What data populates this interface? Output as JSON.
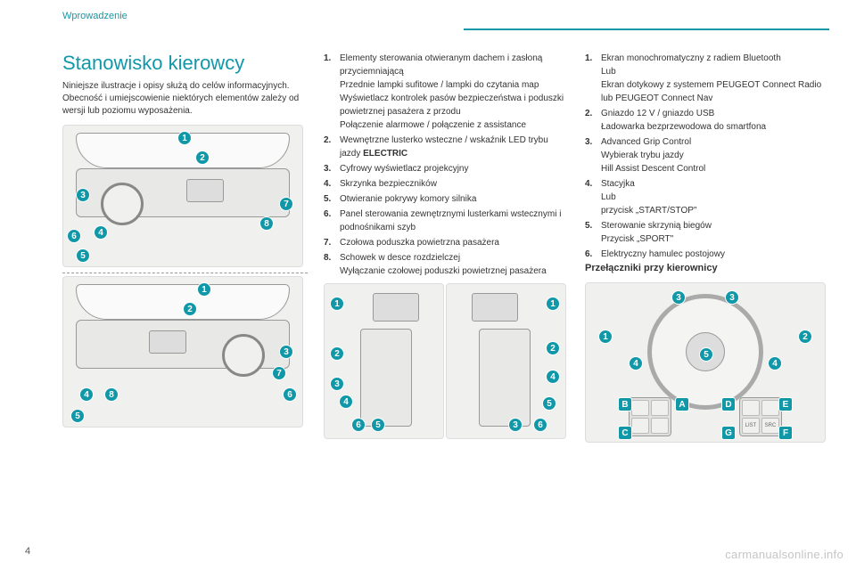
{
  "colors": {
    "accent": "#1098a8",
    "text": "#333333",
    "bg": "#ffffff",
    "diagram_bg": "#f0f0ee"
  },
  "header_label": "Wprowadzenie",
  "page_number": "4",
  "title": "Stanowisko kierowcy",
  "intro": "Niniejsze ilustracje i opisy służą do celów informacyjnych. Obecność i umiejscowienie niektórych elementów zależy od wersji lub poziomu wyposażenia.",
  "list_center": [
    {
      "n": "1.",
      "t": "Elementy sterowania otwieranym dachem i zasłoną przyciemniającą\nPrzednie lampki sufitowe / lampki do czytania map\nWyświetlacz kontrolek pasów bezpieczeństwa i poduszki powietrznej pasażera z przodu\nPołączenie alarmowe / połączenie z assistance"
    },
    {
      "n": "2.",
      "t": "Wewnętrzne lusterko wsteczne / wskaźnik LED trybu jazdy ",
      "bold": "ELECTRIC"
    },
    {
      "n": "3.",
      "t": "Cyfrowy wyświetlacz projekcyjny"
    },
    {
      "n": "4.",
      "t": "Skrzynka bezpieczników"
    },
    {
      "n": "5.",
      "t": "Otwieranie pokrywy komory silnika"
    },
    {
      "n": "6.",
      "t": "Panel sterowania zewnętrznymi lusterkami wstecznymi i podnośnikami szyb"
    },
    {
      "n": "7.",
      "t": "Czołowa poduszka powietrzna pasażera"
    },
    {
      "n": "8.",
      "t": "Schowek w desce rozdzielczej\nWyłączanie czołowej poduszki powietrznej pasażera"
    }
  ],
  "list_right": [
    {
      "n": "1.",
      "t": "Ekran monochromatyczny z radiem Bluetooth\nLub\nEkran dotykowy z systemem PEUGEOT Connect Radio lub PEUGEOT Connect Nav"
    },
    {
      "n": "2.",
      "t": "Gniazdo 12 V / gniazdo USB\nŁadowarka bezprzewodowa do smartfona"
    },
    {
      "n": "3.",
      "t": "Advanced Grip Control\nWybierak trybu jazdy\nHill Assist Descent Control"
    },
    {
      "n": "4.",
      "t": "Stacyjka\nLub\nprzycisk „START/STOP\""
    },
    {
      "n": "5.",
      "t": "Sterowanie skrzynią biegów\nPrzycisk „SPORT\""
    },
    {
      "n": "6.",
      "t": "Elektryczny hamulec postojowy"
    }
  ],
  "subheading_right": "Przełączniki przy kierownicy",
  "watermark": "carmanualsonline.info",
  "diagram_callouts": {
    "d1": [
      "1",
      "2",
      "3",
      "4",
      "5",
      "6",
      "7",
      "8"
    ],
    "d2": [
      "1",
      "2",
      "3",
      "4",
      "5",
      "6",
      "7",
      "8"
    ],
    "d3": [
      "1",
      "2",
      "3",
      "4",
      "5",
      "6"
    ],
    "d4": [
      "1",
      "2",
      "3",
      "4",
      "5",
      "6"
    ],
    "steering_nums": [
      "1",
      "2",
      "3",
      "3",
      "4",
      "4",
      "5"
    ],
    "steering_letters": [
      "A",
      "B",
      "C",
      "D",
      "E",
      "F",
      "G"
    ]
  },
  "control_buttons": [
    "LIST",
    "SRC"
  ]
}
